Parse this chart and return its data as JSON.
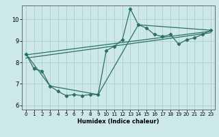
{
  "title": "",
  "xlabel": "Humidex (Indice chaleur)",
  "ylabel": "",
  "bg_color": "#cce8e8",
  "line_color": "#2a7068",
  "grid_color": "#aad0d0",
  "xlim": [
    -0.5,
    23.5
  ],
  "ylim": [
    5.8,
    10.65
  ],
  "yticks": [
    6,
    7,
    8,
    9,
    10
  ],
  "xticks": [
    0,
    1,
    2,
    3,
    4,
    5,
    6,
    7,
    8,
    9,
    10,
    11,
    12,
    13,
    14,
    15,
    16,
    17,
    18,
    19,
    20,
    21,
    22,
    23
  ],
  "line1_x": [
    0,
    1,
    2,
    3,
    4,
    5,
    6,
    7,
    8,
    9,
    10,
    11,
    12,
    13,
    14,
    15,
    16,
    17,
    18,
    19,
    20,
    21,
    22,
    23
  ],
  "line1_y": [
    8.4,
    7.7,
    7.6,
    6.9,
    6.65,
    6.45,
    6.5,
    6.45,
    6.5,
    6.5,
    8.55,
    8.75,
    9.05,
    10.5,
    9.75,
    9.6,
    9.3,
    9.2,
    9.3,
    8.85,
    9.05,
    9.15,
    9.3,
    9.5
  ],
  "line2_x": [
    0,
    3,
    9,
    14,
    23
  ],
  "line2_y": [
    8.4,
    6.9,
    6.5,
    9.75,
    9.5
  ],
  "line3_x": [
    0,
    23
  ],
  "line3_y": [
    8.35,
    9.45
  ],
  "line4_x": [
    0,
    23
  ],
  "line4_y": [
    8.2,
    9.38
  ],
  "xlabel_fontsize": 6.0,
  "tick_fontsize_x": 5.2,
  "tick_fontsize_y": 6.0
}
